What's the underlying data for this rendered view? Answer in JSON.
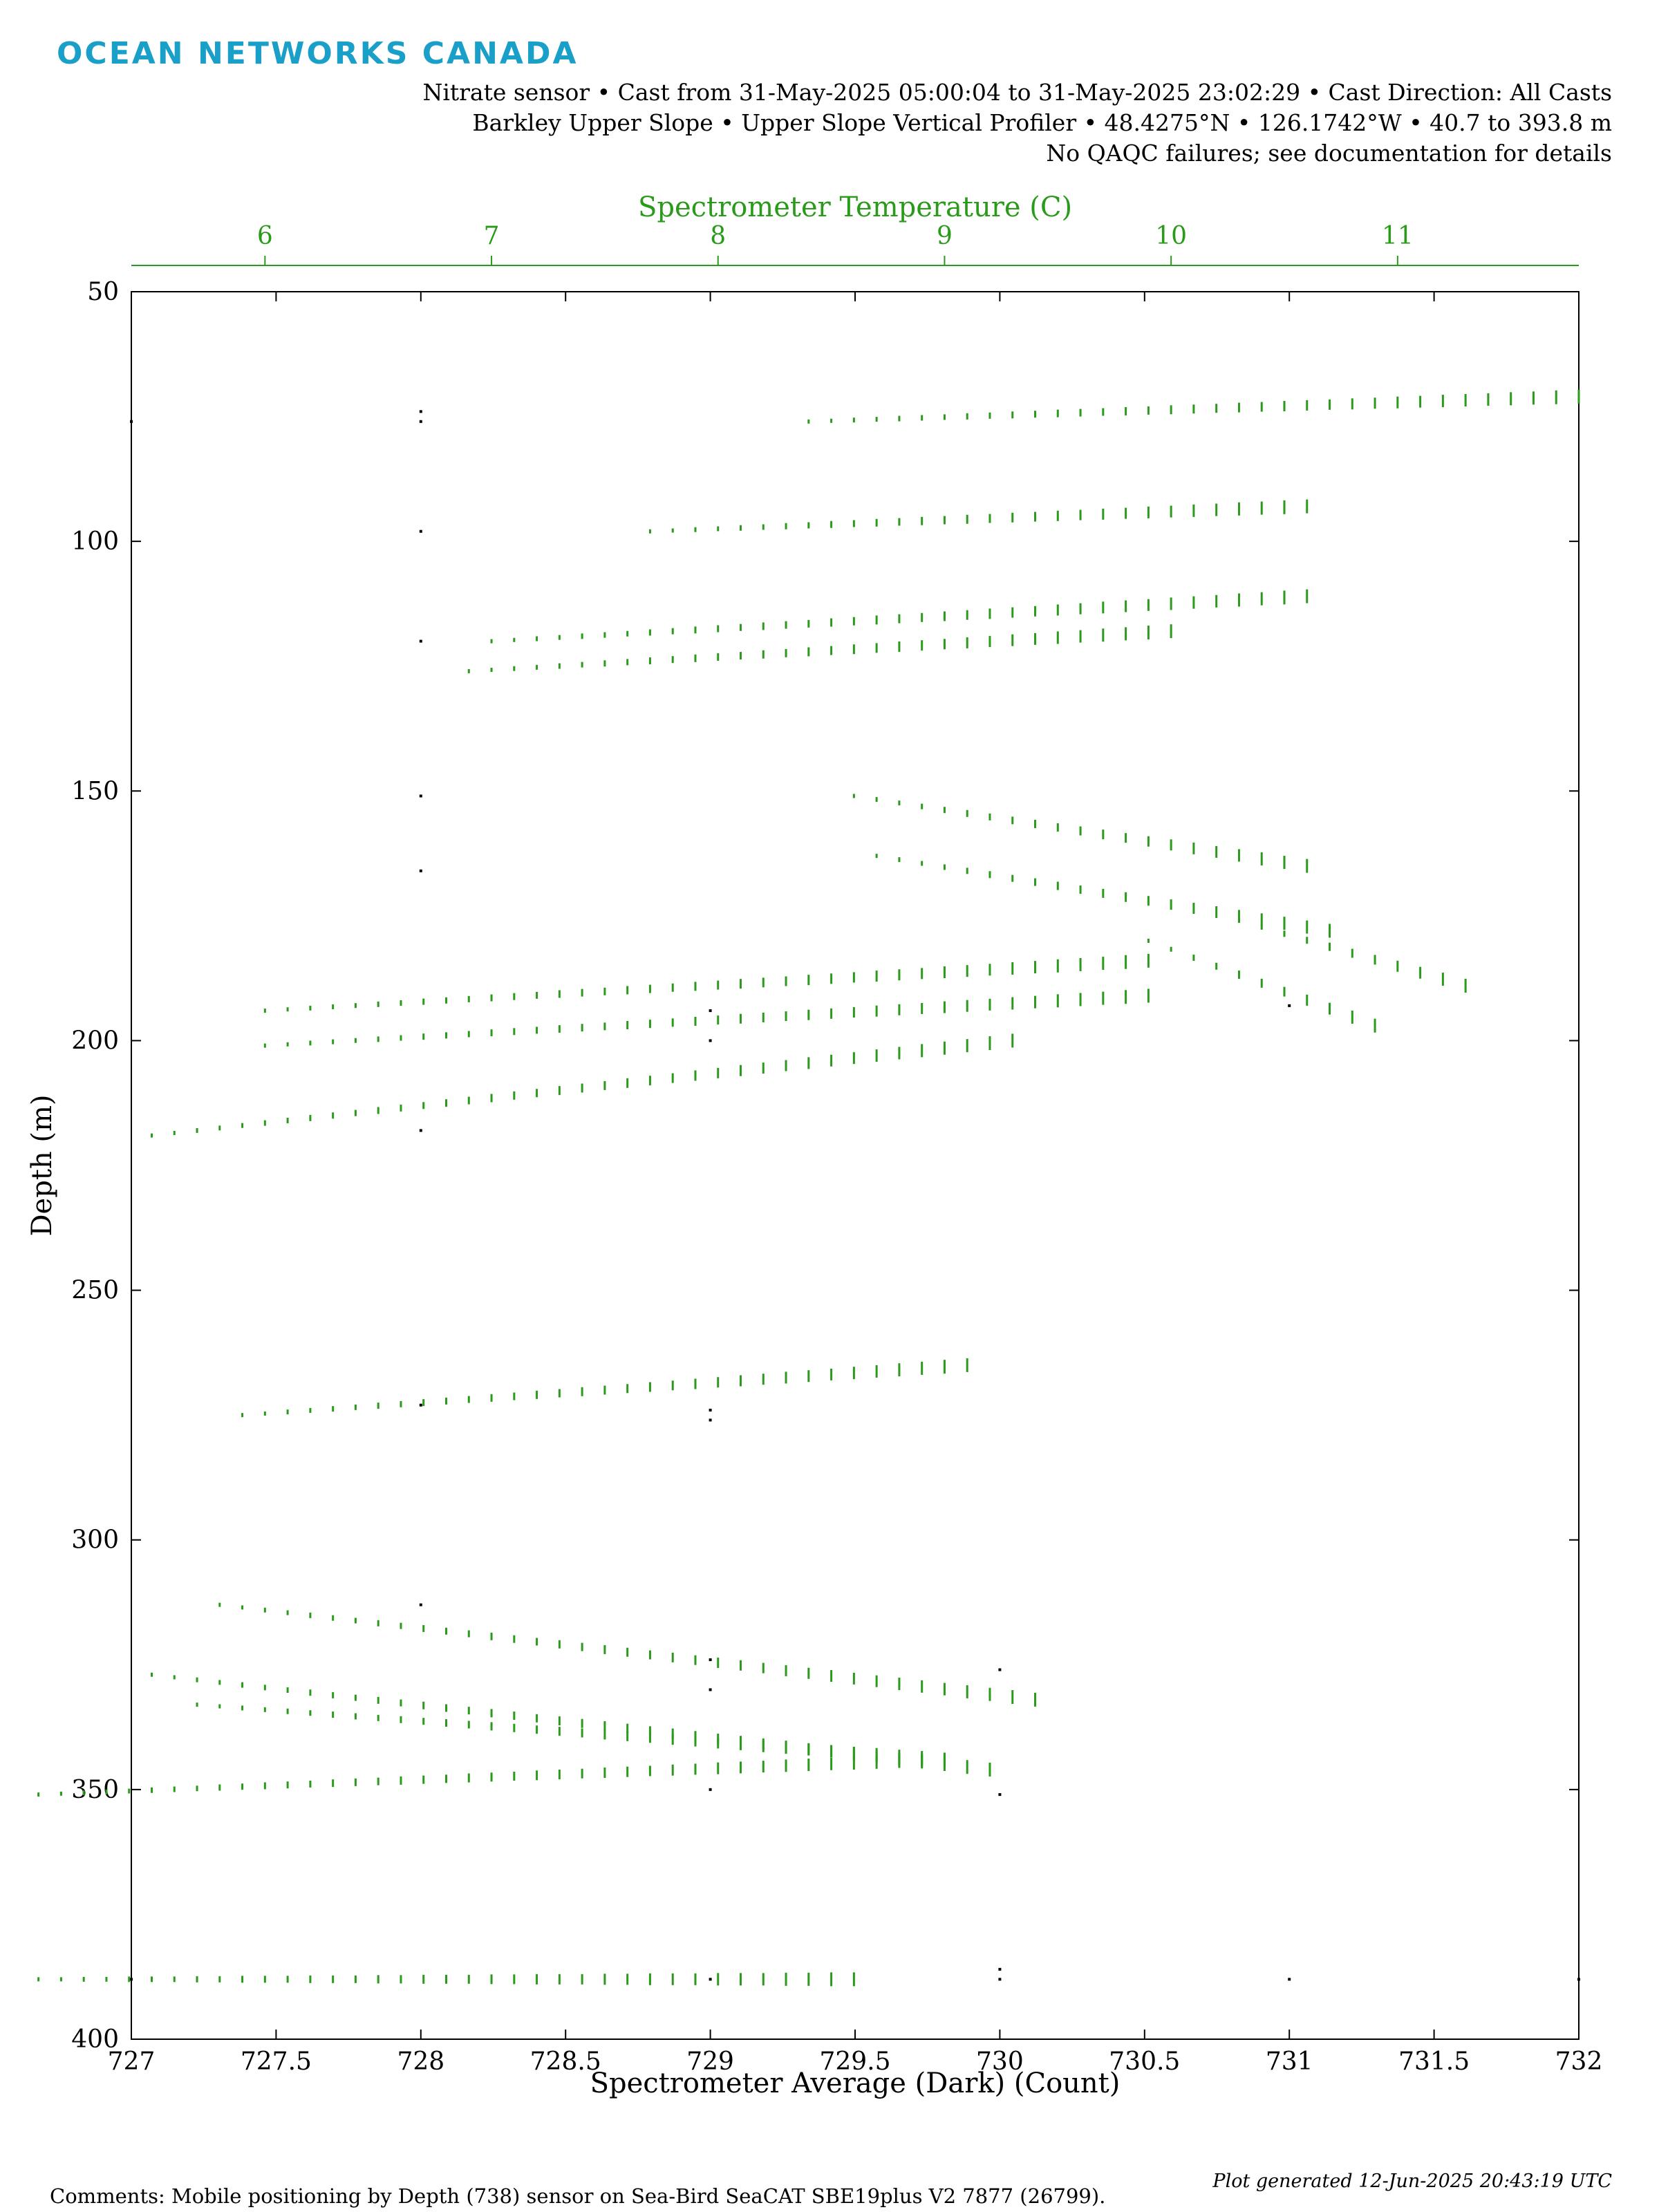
{
  "brand": {
    "logo_text": "OCEAN NETWORKS CANADA",
    "color": "#1aa0c8"
  },
  "header": {
    "line1": "Nitrate sensor • Cast from 31-May-2025 05:00:04 to 31-May-2025 23:02:29 • Cast Direction: All Casts",
    "line2": "Barkley Upper Slope • Upper Slope Vertical Profiler • 48.4275°N • 126.1742°W • 40.7 to 393.8 m",
    "line3": "No QAQC failures; see documentation for details"
  },
  "footer": {
    "comments": "Comments: Mobile positioning by Depth (738) sensor on Sea-Bird SeaCAT SBE19plus V2 7877 (26799).",
    "generated": "Plot generated 12-Jun-2025 20:43:19 UTC"
  },
  "chart_data": {
    "type": "scatter",
    "xlabel": "Spectrometer Average (Dark) (Count)",
    "ylabel": "Depth (m)",
    "x2label": "Spectrometer Temperature (C)",
    "xlim": [
      727,
      732
    ],
    "ylim": [
      400,
      50
    ],
    "x2lim": [
      5.41,
      11.8
    ],
    "xticks": [
      "727",
      "727.5",
      "728",
      "728.5",
      "729",
      "729.5",
      "730",
      "730.5",
      "731",
      "731.5",
      "732"
    ],
    "yticks": [
      "50",
      "100",
      "150",
      "200",
      "250",
      "300",
      "350",
      "400"
    ],
    "x2ticks": [
      "6",
      "7",
      "8",
      "9",
      "10",
      "11"
    ],
    "colors": {
      "count": "#000000",
      "temperature": "#2a9a1a"
    },
    "series": [
      {
        "axis": "bottom",
        "color": "#000000",
        "points": [
          [
            728,
            74
          ],
          [
            728,
            76
          ],
          [
            728,
            98
          ],
          [
            728,
            120
          ],
          [
            728,
            151
          ],
          [
            728,
            166
          ],
          [
            728,
            218
          ],
          [
            729,
            194
          ],
          [
            729,
            200
          ],
          [
            728,
            273
          ],
          [
            729,
            274
          ],
          [
            729,
            276
          ],
          [
            728,
            313
          ],
          [
            729,
            324
          ],
          [
            729,
            330
          ],
          [
            730,
            326
          ],
          [
            729,
            350
          ],
          [
            730,
            351
          ],
          [
            730,
            386
          ],
          [
            730,
            388
          ],
          [
            729,
            388
          ],
          [
            731,
            193
          ],
          [
            731,
            388
          ],
          [
            732,
            388
          ],
          [
            727,
            388
          ],
          [
            727,
            76
          ]
        ]
      },
      {
        "axis": "top",
        "color": "#2a9a1a",
        "casts": [
          {
            "t": [
              8.4,
              11.8
            ],
            "depth": [
              76,
              71
            ]
          },
          {
            "t": [
              7.7,
              10.6
            ],
            "depth": [
              98,
              93
            ]
          },
          {
            "t": [
              7.0,
              10.6
            ],
            "depth": [
              120,
              111
            ]
          },
          {
            "t": [
              6.9,
              10.0
            ],
            "depth": [
              126,
              118
            ]
          },
          {
            "t": [
              8.6,
              10.6
            ],
            "depth": [
              151,
              165
            ]
          },
          {
            "t": [
              8.7,
              10.7
            ],
            "depth": [
              163,
              178
            ]
          },
          {
            "t": [
              10.3,
              11.3
            ],
            "depth": [
              176,
              189
            ]
          },
          {
            "t": [
              9.9,
              10.9
            ],
            "depth": [
              180,
              197
            ]
          },
          {
            "t": [
              6.0,
              9.9
            ],
            "depth": [
              194,
              184
            ]
          },
          {
            "t": [
              6.0,
              9.9
            ],
            "depth": [
              201,
              191
            ]
          },
          {
            "t": [
              5.5,
              9.3
            ],
            "depth": [
              219,
              200
            ]
          },
          {
            "t": [
              5.9,
              9.1
            ],
            "depth": [
              275,
              265
            ]
          },
          {
            "t": [
              5.8,
              9.4
            ],
            "depth": [
              313,
              332
            ]
          },
          {
            "t": [
              5.5,
              9.2
            ],
            "depth": [
              327,
              346
            ]
          },
          {
            "t": [
              5.7,
              9.0
            ],
            "depth": [
              333,
              344
            ]
          },
          {
            "t": [
              5.0,
              9.0
            ],
            "depth": [
              351,
              344
            ]
          },
          {
            "t": [
              5.0,
              8.6
            ],
            "depth": [
              388,
              388
            ]
          }
        ]
      }
    ]
  }
}
